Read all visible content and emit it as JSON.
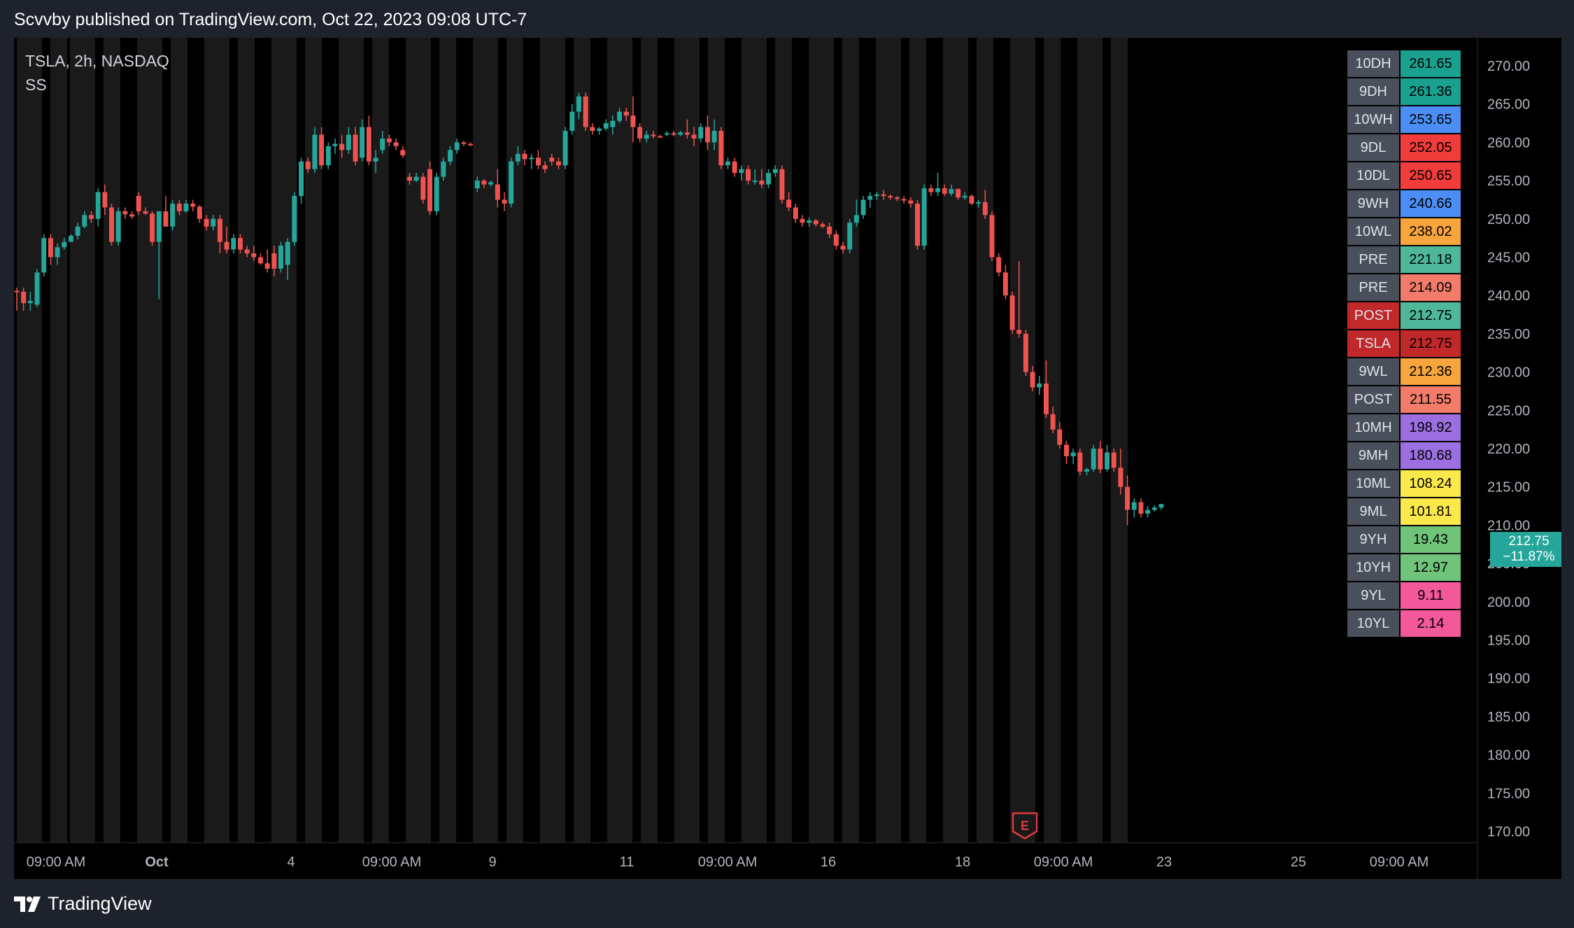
{
  "header": {
    "published": "Scvvby published on TradingView.com, Oct 22, 2023 09:08 UTC-7"
  },
  "chart": {
    "symbol": "TSLA, 2h, NASDAQ",
    "indicator": "SS"
  },
  "colors": {
    "up": "#26a69a",
    "down": "#ef5350",
    "bg": "#000000",
    "band": "#1a1a1a"
  },
  "price_badge": {
    "price": "212.75",
    "change": "−11.87%"
  },
  "level_table": [
    {
      "label": "10DH",
      "value": "261.65",
      "label_bg": "#4a4f5c",
      "value_bg": "#1aa08f"
    },
    {
      "label": "9DH",
      "value": "261.36",
      "label_bg": "#4a4f5c",
      "value_bg": "#1aa08f"
    },
    {
      "label": "10WH",
      "value": "253.65",
      "label_bg": "#4a4f5c",
      "value_bg": "#4c8ef5"
    },
    {
      "label": "9DL",
      "value": "252.05",
      "label_bg": "#4a4f5c",
      "value_bg": "#f23b3b"
    },
    {
      "label": "10DL",
      "value": "250.65",
      "label_bg": "#4a4f5c",
      "value_bg": "#f23b3b"
    },
    {
      "label": "9WH",
      "value": "240.66",
      "label_bg": "#4a4f5c",
      "value_bg": "#4c8ef5"
    },
    {
      "label": "10WL",
      "value": "238.02",
      "label_bg": "#4a4f5c",
      "value_bg": "#f7a53c"
    },
    {
      "label": "PRE",
      "value": "221.18",
      "label_bg": "#4a4f5c",
      "value_bg": "#4fb89a"
    },
    {
      "label": "PRE",
      "value": "214.09",
      "label_bg": "#4a4f5c",
      "value_bg": "#f27b6a"
    },
    {
      "label": "POST",
      "value": "212.75",
      "label_bg": "#c0282a",
      "value_bg": "#4fb89a"
    },
    {
      "label": "TSLA",
      "value": "212.75",
      "label_bg": "#c0282a",
      "value_bg": "#c0282a"
    },
    {
      "label": "9WL",
      "value": "212.36",
      "label_bg": "#4a4f5c",
      "value_bg": "#f7a53c"
    },
    {
      "label": "POST",
      "value": "211.55",
      "label_bg": "#4a4f5c",
      "value_bg": "#f27b6a"
    },
    {
      "label": "10MH",
      "value": "198.92",
      "label_bg": "#4a4f5c",
      "value_bg": "#9b6fe0"
    },
    {
      "label": "9MH",
      "value": "180.68",
      "label_bg": "#4a4f5c",
      "value_bg": "#9b6fe0"
    },
    {
      "label": "10ML",
      "value": "108.24",
      "label_bg": "#4a4f5c",
      "value_bg": "#fbe94c"
    },
    {
      "label": "9ML",
      "value": "101.81",
      "label_bg": "#4a4f5c",
      "value_bg": "#fbe94c"
    },
    {
      "label": "9YH",
      "value": "19.43",
      "label_bg": "#4a4f5c",
      "value_bg": "#6fc47a"
    },
    {
      "label": "10YH",
      "value": "12.97",
      "label_bg": "#4a4f5c",
      "value_bg": "#6fc47a"
    },
    {
      "label": "9YL",
      "value": "9.11",
      "label_bg": "#4a4f5c",
      "value_bg": "#f2589a"
    },
    {
      "label": "10YL",
      "value": "2.14",
      "label_bg": "#4a4f5c",
      "value_bg": "#f2589a"
    }
  ],
  "chart_data": {
    "type": "candlestick",
    "interval": "2h",
    "y_ticks": [
      "270.00",
      "265.00",
      "260.00",
      "255.00",
      "250.00",
      "245.00",
      "240.00",
      "235.00",
      "230.00",
      "225.00",
      "220.00",
      "215.00",
      "210.00",
      "205.00",
      "200.00",
      "195.00",
      "190.00",
      "185.00",
      "180.00",
      "175.00",
      "170.00"
    ],
    "ylim": [
      170,
      270
    ],
    "x_ticks": [
      "09:00 AM",
      "Oct",
      "4",
      "09:00 AM",
      "9",
      "11",
      "09:00 AM",
      "16",
      "18",
      "09:00 AM",
      "23",
      "25",
      "09:00 AM"
    ],
    "earnings_marker": "E",
    "candles": [
      {
        "o": 240.6,
        "h": 241.0,
        "l": 238.0,
        "c": 240.5
      },
      {
        "o": 240.5,
        "h": 241.0,
        "l": 238.0,
        "c": 239.0
      },
      {
        "o": 239.0,
        "h": 240.5,
        "l": 238.0,
        "c": 239.3
      },
      {
        "o": 238.8,
        "h": 243.5,
        "l": 238.5,
        "c": 243.0
      },
      {
        "o": 243.0,
        "h": 248.0,
        "l": 242.5,
        "c": 247.5
      },
      {
        "o": 247.5,
        "h": 248.0,
        "l": 244.0,
        "c": 245.0
      },
      {
        "o": 245.0,
        "h": 246.8,
        "l": 244.0,
        "c": 246.3
      },
      {
        "o": 246.3,
        "h": 247.5,
        "l": 246.0,
        "c": 247.0
      },
      {
        "o": 247.0,
        "h": 248.0,
        "l": 247.2,
        "c": 247.8
      },
      {
        "o": 247.8,
        "h": 249.5,
        "l": 247.3,
        "c": 249.0
      },
      {
        "o": 249.0,
        "h": 251.0,
        "l": 248.8,
        "c": 250.5
      },
      {
        "o": 250.5,
        "h": 251.0,
        "l": 249.5,
        "c": 250.0
      },
      {
        "o": 250.0,
        "h": 254.0,
        "l": 249.0,
        "c": 253.5
      },
      {
        "o": 253.5,
        "h": 254.5,
        "l": 250.5,
        "c": 251.5
      },
      {
        "o": 251.5,
        "h": 252.0,
        "l": 246.5,
        "c": 247.0
      },
      {
        "o": 247.0,
        "h": 251.5,
        "l": 246.5,
        "c": 251.0
      },
      {
        "o": 251.0,
        "h": 251.5,
        "l": 250.0,
        "c": 250.6
      },
      {
        "o": 250.6,
        "h": 251.0,
        "l": 250.0,
        "c": 250.3
      },
      {
        "o": 253.0,
        "h": 253.5,
        "l": 250.5,
        "c": 251.0
      },
      {
        "o": 251.0,
        "h": 251.5,
        "l": 250.5,
        "c": 250.7
      },
      {
        "o": 250.7,
        "h": 251.0,
        "l": 246.5,
        "c": 247.0
      },
      {
        "o": 247.0,
        "h": 251.0,
        "l": 239.5,
        "c": 251.0
      },
      {
        "o": 251.0,
        "h": 253.0,
        "l": 249.0,
        "c": 249.0
      },
      {
        "o": 249.0,
        "h": 252.5,
        "l": 248.5,
        "c": 252.0
      },
      {
        "o": 252.0,
        "h": 252.5,
        "l": 250.5,
        "c": 251.0
      },
      {
        "o": 251.0,
        "h": 252.5,
        "l": 250.8,
        "c": 252.0
      },
      {
        "o": 252.0,
        "h": 252.5,
        "l": 251.0,
        "c": 251.6
      },
      {
        "o": 251.6,
        "h": 251.8,
        "l": 249.5,
        "c": 250.0
      },
      {
        "o": 250.0,
        "h": 250.5,
        "l": 248.5,
        "c": 249.0
      },
      {
        "o": 249.0,
        "h": 250.5,
        "l": 248.5,
        "c": 250.0
      },
      {
        "o": 250.0,
        "h": 250.5,
        "l": 245.5,
        "c": 247.0
      },
      {
        "o": 247.0,
        "h": 249.0,
        "l": 245.5,
        "c": 246.0
      },
      {
        "o": 246.0,
        "h": 248.0,
        "l": 245.5,
        "c": 247.5
      },
      {
        "o": 247.5,
        "h": 248.0,
        "l": 245.5,
        "c": 246.0
      },
      {
        "o": 246.0,
        "h": 246.5,
        "l": 245.0,
        "c": 245.5
      },
      {
        "o": 245.5,
        "h": 246.5,
        "l": 244.5,
        "c": 245.0
      },
      {
        "o": 245.0,
        "h": 245.5,
        "l": 244.0,
        "c": 244.2
      },
      {
        "o": 244.2,
        "h": 246.0,
        "l": 243.0,
        "c": 243.5
      },
      {
        "o": 245.5,
        "h": 246.5,
        "l": 242.5,
        "c": 243.5
      },
      {
        "o": 243.5,
        "h": 247.0,
        "l": 243.0,
        "c": 246.5
      },
      {
        "o": 244.0,
        "h": 247.5,
        "l": 242.0,
        "c": 247.0
      },
      {
        "o": 247.0,
        "h": 253.5,
        "l": 246.5,
        "c": 253.0
      },
      {
        "o": 253.0,
        "h": 258.0,
        "l": 252.0,
        "c": 257.5
      },
      {
        "o": 257.5,
        "h": 258.0,
        "l": 256.0,
        "c": 256.5
      },
      {
        "o": 256.5,
        "h": 262.0,
        "l": 256.0,
        "c": 261.0
      },
      {
        "o": 261.0,
        "h": 262.0,
        "l": 256.5,
        "c": 257.0
      },
      {
        "o": 257.0,
        "h": 260.0,
        "l": 256.5,
        "c": 259.5
      },
      {
        "o": 259.5,
        "h": 260.5,
        "l": 258.5,
        "c": 259.8
      },
      {
        "o": 259.8,
        "h": 261.0,
        "l": 258.0,
        "c": 259.0
      },
      {
        "o": 259.0,
        "h": 262.0,
        "l": 258.5,
        "c": 261.0
      },
      {
        "o": 261.0,
        "h": 262.0,
        "l": 257.0,
        "c": 257.5
      },
      {
        "o": 258.0,
        "h": 263.0,
        "l": 257.5,
        "c": 262.0
      },
      {
        "o": 262.0,
        "h": 263.5,
        "l": 257.0,
        "c": 257.5
      },
      {
        "o": 257.5,
        "h": 259.0,
        "l": 256.0,
        "c": 258.0
      },
      {
        "o": 259.0,
        "h": 261.5,
        "l": 258.5,
        "c": 260.5
      },
      {
        "o": 260.5,
        "h": 261.0,
        "l": 259.5,
        "c": 260.0
      },
      {
        "o": 260.0,
        "h": 260.5,
        "l": 259.0,
        "c": 259.5
      },
      {
        "o": 259.0,
        "h": 259.5,
        "l": 258.0,
        "c": 258.3
      },
      {
        "o": 255.5,
        "h": 256.0,
        "l": 254.5,
        "c": 255.0
      },
      {
        "o": 255.0,
        "h": 256.0,
        "l": 254.8,
        "c": 255.5
      },
      {
        "o": 255.5,
        "h": 256.0,
        "l": 252.0,
        "c": 252.5
      },
      {
        "o": 256.5,
        "h": 257.5,
        "l": 250.5,
        "c": 251.0
      },
      {
        "o": 251.0,
        "h": 256.0,
        "l": 250.5,
        "c": 255.5
      },
      {
        "o": 255.5,
        "h": 258.0,
        "l": 255.0,
        "c": 257.5
      },
      {
        "o": 257.5,
        "h": 259.5,
        "l": 257.0,
        "c": 259.0
      },
      {
        "o": 259.0,
        "h": 260.5,
        "l": 258.5,
        "c": 260.0
      },
      {
        "o": 260.0,
        "h": 260.2,
        "l": 259.5,
        "c": 259.8
      },
      {
        "o": 259.8,
        "h": 260.0,
        "l": 259.5,
        "c": 259.7
      },
      {
        "o": 254.0,
        "h": 255.5,
        "l": 253.5,
        "c": 255.0
      },
      {
        "o": 255.0,
        "h": 255.2,
        "l": 254.0,
        "c": 254.5
      },
      {
        "o": 254.5,
        "h": 255.0,
        "l": 254.2,
        "c": 254.8
      },
      {
        "o": 254.5,
        "h": 256.5,
        "l": 251.5,
        "c": 252.5
      },
      {
        "o": 252.5,
        "h": 253.5,
        "l": 251.0,
        "c": 252.0
      },
      {
        "o": 252.0,
        "h": 258.0,
        "l": 251.5,
        "c": 257.5
      },
      {
        "o": 257.5,
        "h": 259.5,
        "l": 257.0,
        "c": 258.5
      },
      {
        "o": 258.5,
        "h": 259.0,
        "l": 257.0,
        "c": 257.8
      },
      {
        "o": 257.8,
        "h": 258.5,
        "l": 256.5,
        "c": 258.0
      },
      {
        "o": 258.0,
        "h": 259.0,
        "l": 256.5,
        "c": 257.0
      },
      {
        "o": 257.0,
        "h": 257.5,
        "l": 256.0,
        "c": 256.5
      },
      {
        "o": 258.0,
        "h": 258.5,
        "l": 257.0,
        "c": 257.5
      },
      {
        "o": 257.5,
        "h": 258.0,
        "l": 256.5,
        "c": 257.0
      },
      {
        "o": 257.0,
        "h": 262.0,
        "l": 256.5,
        "c": 261.5
      },
      {
        "o": 261.5,
        "h": 265.0,
        "l": 261.0,
        "c": 264.0
      },
      {
        "o": 264.0,
        "h": 266.5,
        "l": 263.0,
        "c": 266.0
      },
      {
        "o": 266.0,
        "h": 266.5,
        "l": 261.5,
        "c": 262.0
      },
      {
        "o": 262.0,
        "h": 262.5,
        "l": 261.0,
        "c": 261.5
      },
      {
        "o": 261.5,
        "h": 262.0,
        "l": 261.0,
        "c": 261.8
      },
      {
        "o": 261.8,
        "h": 263.0,
        "l": 261.5,
        "c": 262.5
      },
      {
        "o": 262.0,
        "h": 263.5,
        "l": 261.0,
        "c": 262.8
      },
      {
        "o": 262.8,
        "h": 264.5,
        "l": 262.5,
        "c": 264.0
      },
      {
        "o": 264.0,
        "h": 264.5,
        "l": 262.8,
        "c": 263.5
      },
      {
        "o": 263.5,
        "h": 266.0,
        "l": 260.0,
        "c": 262.0
      },
      {
        "o": 262.0,
        "h": 262.5,
        "l": 260.0,
        "c": 260.5
      },
      {
        "o": 260.5,
        "h": 261.5,
        "l": 260.0,
        "c": 261.0
      },
      {
        "o": 261.0,
        "h": 261.5,
        "l": 260.5,
        "c": 260.8
      },
      {
        "o": 260.8,
        "h": 261.0,
        "l": 260.6,
        "c": 260.7
      },
      {
        "o": 261.0,
        "h": 261.5,
        "l": 260.8,
        "c": 261.2
      },
      {
        "o": 261.2,
        "h": 261.5,
        "l": 260.8,
        "c": 261.0
      },
      {
        "o": 261.0,
        "h": 261.5,
        "l": 260.8,
        "c": 261.3
      },
      {
        "o": 261.3,
        "h": 263.0,
        "l": 260.5,
        "c": 261.0
      },
      {
        "o": 261.0,
        "h": 262.0,
        "l": 259.5,
        "c": 260.5
      },
      {
        "o": 260.5,
        "h": 262.5,
        "l": 260.0,
        "c": 262.0
      },
      {
        "o": 262.0,
        "h": 263.5,
        "l": 259.0,
        "c": 260.0
      },
      {
        "o": 260.0,
        "h": 263.0,
        "l": 259.0,
        "c": 261.5
      },
      {
        "o": 261.5,
        "h": 262.0,
        "l": 256.5,
        "c": 257.0
      },
      {
        "o": 257.0,
        "h": 258.0,
        "l": 256.5,
        "c": 257.5
      },
      {
        "o": 257.5,
        "h": 258.0,
        "l": 255.5,
        "c": 256.0
      },
      {
        "o": 256.0,
        "h": 257.0,
        "l": 255.0,
        "c": 256.5
      },
      {
        "o": 256.5,
        "h": 257.0,
        "l": 254.5,
        "c": 255.0
      },
      {
        "o": 255.0,
        "h": 256.5,
        "l": 254.5,
        "c": 255.0
      },
      {
        "o": 255.0,
        "h": 256.5,
        "l": 254.0,
        "c": 254.5
      },
      {
        "o": 254.5,
        "h": 256.5,
        "l": 254.0,
        "c": 256.0
      },
      {
        "o": 256.0,
        "h": 257.0,
        "l": 255.5,
        "c": 256.5
      },
      {
        "o": 256.5,
        "h": 257.0,
        "l": 252.0,
        "c": 252.5
      },
      {
        "o": 252.5,
        "h": 253.5,
        "l": 251.0,
        "c": 251.5
      },
      {
        "o": 251.5,
        "h": 252.0,
        "l": 249.5,
        "c": 250.0
      },
      {
        "o": 250.0,
        "h": 250.5,
        "l": 249.0,
        "c": 249.5
      },
      {
        "o": 249.5,
        "h": 250.2,
        "l": 249.0,
        "c": 249.8
      },
      {
        "o": 249.8,
        "h": 250.0,
        "l": 249.0,
        "c": 249.3
      },
      {
        "o": 249.3,
        "h": 249.6,
        "l": 248.8,
        "c": 249.0
      },
      {
        "o": 249.0,
        "h": 249.5,
        "l": 247.5,
        "c": 248.0
      },
      {
        "o": 248.0,
        "h": 248.5,
        "l": 246.0,
        "c": 246.5
      },
      {
        "o": 246.5,
        "h": 247.0,
        "l": 245.5,
        "c": 246.0
      },
      {
        "o": 246.0,
        "h": 250.0,
        "l": 245.5,
        "c": 249.5
      },
      {
        "o": 249.5,
        "h": 252.5,
        "l": 249.0,
        "c": 250.5
      },
      {
        "o": 250.5,
        "h": 253.0,
        "l": 250.0,
        "c": 252.5
      },
      {
        "o": 252.5,
        "h": 253.5,
        "l": 251.5,
        "c": 253.0
      },
      {
        "o": 253.0,
        "h": 253.5,
        "l": 252.5,
        "c": 253.2
      },
      {
        "o": 253.2,
        "h": 253.8,
        "l": 252.5,
        "c": 253.0
      },
      {
        "o": 253.0,
        "h": 253.2,
        "l": 252.5,
        "c": 252.8
      },
      {
        "o": 252.8,
        "h": 253.0,
        "l": 252.3,
        "c": 252.6
      },
      {
        "o": 252.6,
        "h": 253.0,
        "l": 252.0,
        "c": 252.4
      },
      {
        "o": 252.4,
        "h": 252.8,
        "l": 251.5,
        "c": 252.0
      },
      {
        "o": 252.0,
        "h": 252.5,
        "l": 246.0,
        "c": 246.5
      },
      {
        "o": 246.5,
        "h": 254.5,
        "l": 246.0,
        "c": 254.0
      },
      {
        "o": 254.0,
        "h": 254.5,
        "l": 253.0,
        "c": 253.5
      },
      {
        "o": 253.5,
        "h": 256.0,
        "l": 253.0,
        "c": 254.0
      },
      {
        "o": 254.0,
        "h": 254.5,
        "l": 253.0,
        "c": 253.3
      },
      {
        "o": 253.3,
        "h": 254.5,
        "l": 253.0,
        "c": 253.9
      },
      {
        "o": 253.9,
        "h": 254.0,
        "l": 252.5,
        "c": 252.8
      },
      {
        "o": 252.8,
        "h": 253.5,
        "l": 252.5,
        "c": 253.0
      },
      {
        "o": 253.0,
        "h": 253.2,
        "l": 251.8,
        "c": 252.0
      },
      {
        "o": 252.0,
        "h": 252.5,
        "l": 251.5,
        "c": 252.2
      },
      {
        "o": 252.2,
        "h": 253.8,
        "l": 250.0,
        "c": 250.5
      },
      {
        "o": 250.5,
        "h": 251.0,
        "l": 244.5,
        "c": 245.0
      },
      {
        "o": 245.0,
        "h": 245.5,
        "l": 242.5,
        "c": 243.0
      },
      {
        "o": 243.0,
        "h": 244.0,
        "l": 239.5,
        "c": 240.0
      },
      {
        "o": 240.0,
        "h": 240.5,
        "l": 235.0,
        "c": 235.5
      },
      {
        "o": 235.5,
        "h": 244.5,
        "l": 234.5,
        "c": 235.0
      },
      {
        "o": 235.0,
        "h": 235.5,
        "l": 229.5,
        "c": 230.0
      },
      {
        "o": 230.0,
        "h": 230.8,
        "l": 227.5,
        "c": 228.0
      },
      {
        "o": 228.0,
        "h": 229.5,
        "l": 227.0,
        "c": 228.5
      },
      {
        "o": 228.5,
        "h": 231.5,
        "l": 224.0,
        "c": 224.5
      },
      {
        "o": 224.5,
        "h": 225.5,
        "l": 222.0,
        "c": 222.5
      },
      {
        "o": 222.5,
        "h": 223.5,
        "l": 220.0,
        "c": 220.5
      },
      {
        "o": 220.5,
        "h": 221.0,
        "l": 218.0,
        "c": 219.0
      },
      {
        "o": 219.0,
        "h": 220.0,
        "l": 218.0,
        "c": 219.5
      },
      {
        "o": 219.5,
        "h": 220.0,
        "l": 216.5,
        "c": 217.0
      },
      {
        "o": 217.0,
        "h": 217.5,
        "l": 216.5,
        "c": 217.3
      },
      {
        "o": 217.3,
        "h": 220.5,
        "l": 217.0,
        "c": 220.0
      },
      {
        "o": 220.0,
        "h": 221.0,
        "l": 216.8,
        "c": 217.3
      },
      {
        "o": 217.3,
        "h": 220.5,
        "l": 217.0,
        "c": 219.5
      },
      {
        "o": 219.5,
        "h": 220.0,
        "l": 217.0,
        "c": 217.5
      },
      {
        "o": 217.5,
        "h": 220.0,
        "l": 214.0,
        "c": 215.0
      },
      {
        "o": 215.0,
        "h": 216.5,
        "l": 210.0,
        "c": 212.0
      },
      {
        "o": 212.0,
        "h": 213.5,
        "l": 211.0,
        "c": 213.0
      },
      {
        "o": 213.0,
        "h": 213.5,
        "l": 211.0,
        "c": 211.5
      },
      {
        "o": 211.5,
        "h": 212.5,
        "l": 211.0,
        "c": 212.0
      },
      {
        "o": 212.0,
        "h": 212.6,
        "l": 211.8,
        "c": 212.3
      },
      {
        "o": 212.3,
        "h": 212.8,
        "l": 212.0,
        "c": 212.75
      }
    ]
  }
}
